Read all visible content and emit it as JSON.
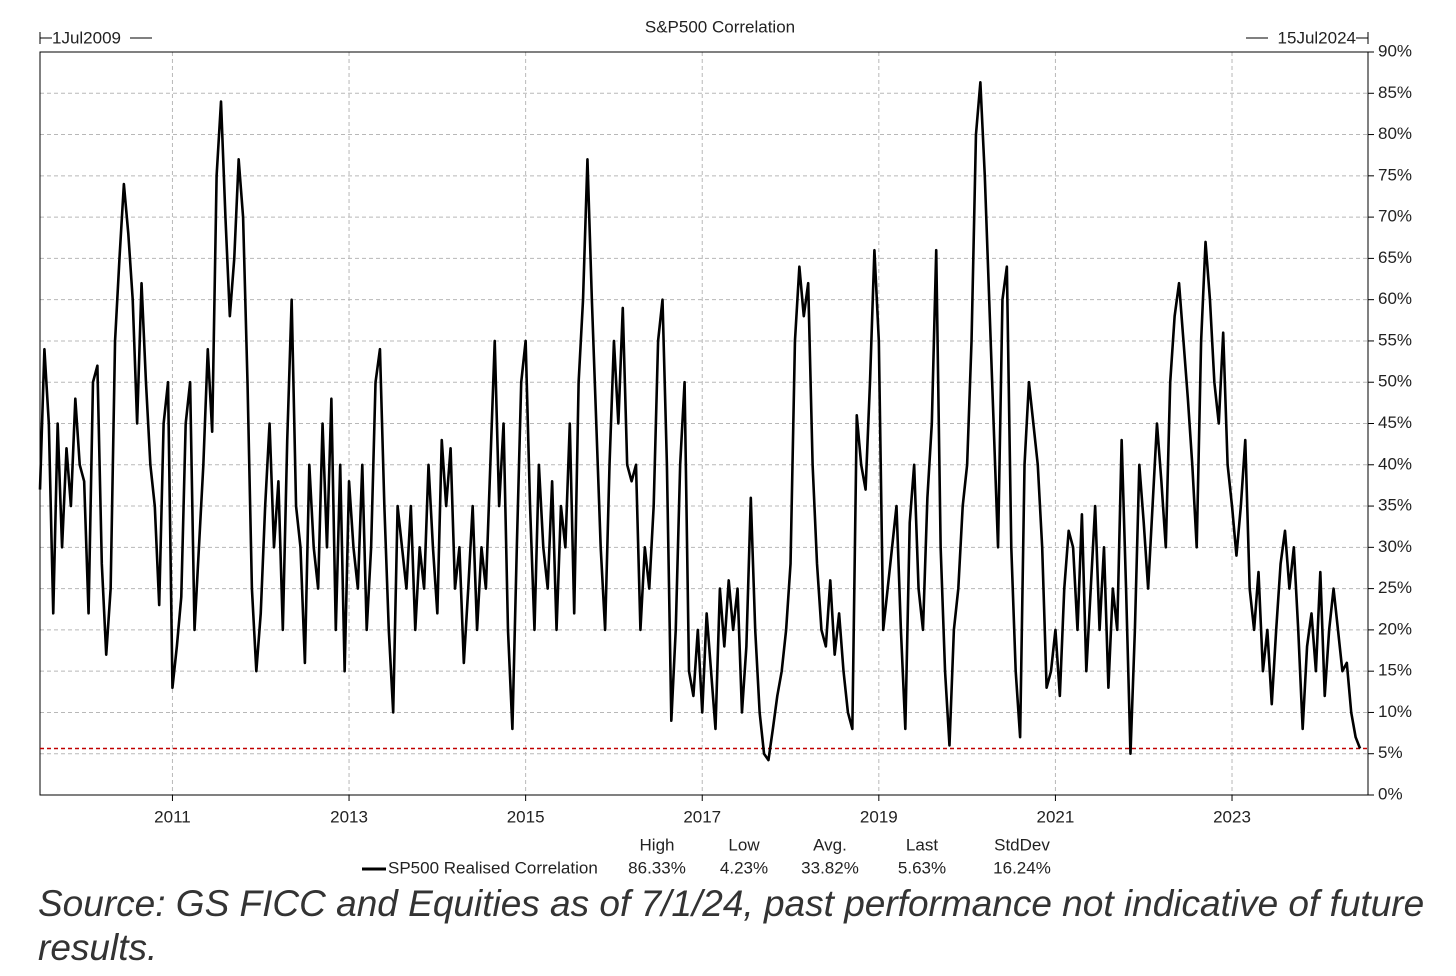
{
  "chart_data": {
    "type": "line",
    "title": "S&P500 Correlation",
    "start_label": "1Jul2009",
    "end_label": "15Jul2024",
    "x": [
      2009.5,
      2009.55,
      2009.6,
      2009.65,
      2009.7,
      2009.75,
      2009.8,
      2009.85,
      2009.9,
      2009.95,
      2010,
      2010.05,
      2010.1,
      2010.15,
      2010.2,
      2010.25,
      2010.3,
      2010.35,
      2010.4,
      2010.45,
      2010.5,
      2010.55,
      2010.6,
      2010.65,
      2010.7,
      2010.75,
      2010.8,
      2010.85,
      2010.9,
      2010.95,
      2011,
      2011.05,
      2011.1,
      2011.15,
      2011.2,
      2011.25,
      2011.3,
      2011.35,
      2011.4,
      2011.45,
      2011.5,
      2011.55,
      2011.6,
      2011.65,
      2011.7,
      2011.75,
      2011.8,
      2011.85,
      2011.9,
      2011.95,
      2012,
      2012.05,
      2012.1,
      2012.15,
      2012.2,
      2012.25,
      2012.3,
      2012.35,
      2012.4,
      2012.45,
      2012.5,
      2012.55,
      2012.6,
      2012.65,
      2012.7,
      2012.75,
      2012.8,
      2012.85,
      2012.9,
      2012.95,
      2013,
      2013.05,
      2013.1,
      2013.15,
      2013.2,
      2013.25,
      2013.3,
      2013.35,
      2013.4,
      2013.45,
      2013.5,
      2013.55,
      2013.6,
      2013.65,
      2013.7,
      2013.75,
      2013.8,
      2013.85,
      2013.9,
      2013.95,
      2014,
      2014.05,
      2014.1,
      2014.15,
      2014.2,
      2014.25,
      2014.3,
      2014.35,
      2014.4,
      2014.45,
      2014.5,
      2014.55,
      2014.6,
      2014.65,
      2014.7,
      2014.75,
      2014.8,
      2014.85,
      2014.9,
      2014.95,
      2015,
      2015.05,
      2015.1,
      2015.15,
      2015.2,
      2015.25,
      2015.3,
      2015.35,
      2015.4,
      2015.45,
      2015.5,
      2015.55,
      2015.6,
      2015.65,
      2015.7,
      2015.75,
      2015.8,
      2015.85,
      2015.9,
      2015.95,
      2016,
      2016.05,
      2016.1,
      2016.15,
      2016.2,
      2016.25,
      2016.3,
      2016.35,
      2016.4,
      2016.45,
      2016.5,
      2016.55,
      2016.6,
      2016.65,
      2016.7,
      2016.75,
      2016.8,
      2016.85,
      2016.9,
      2016.95,
      2017,
      2017.05,
      2017.1,
      2017.15,
      2017.2,
      2017.25,
      2017.3,
      2017.35,
      2017.4,
      2017.45,
      2017.5,
      2017.55,
      2017.6,
      2017.65,
      2017.7,
      2017.75,
      2017.8,
      2017.85,
      2017.9,
      2017.95,
      2018,
      2018.05,
      2018.1,
      2018.15,
      2018.2,
      2018.25,
      2018.3,
      2018.35,
      2018.4,
      2018.45,
      2018.5,
      2018.55,
      2018.6,
      2018.65,
      2018.7,
      2018.75,
      2018.8,
      2018.85,
      2018.9,
      2018.95,
      2019,
      2019.05,
      2019.1,
      2019.15,
      2019.2,
      2019.25,
      2019.3,
      2019.35,
      2019.4,
      2019.45,
      2019.5,
      2019.55,
      2019.6,
      2019.65,
      2019.7,
      2019.75,
      2019.8,
      2019.85,
      2019.9,
      2019.95,
      2020,
      2020.05,
      2020.1,
      2020.15,
      2020.2,
      2020.25,
      2020.3,
      2020.35,
      2020.4,
      2020.45,
      2020.5,
      2020.55,
      2020.6,
      2020.65,
      2020.7,
      2020.75,
      2020.8,
      2020.85,
      2020.9,
      2020.95,
      2021,
      2021.05,
      2021.1,
      2021.15,
      2021.2,
      2021.25,
      2021.3,
      2021.35,
      2021.4,
      2021.45,
      2021.5,
      2021.55,
      2021.6,
      2021.65,
      2021.7,
      2021.75,
      2021.8,
      2021.85,
      2021.9,
      2021.95,
      2022,
      2022.05,
      2022.1,
      2022.15,
      2022.2,
      2022.25,
      2022.3,
      2022.35,
      2022.4,
      2022.45,
      2022.5,
      2022.55,
      2022.6,
      2022.65,
      2022.7,
      2022.75,
      2022.8,
      2022.85,
      2022.9,
      2022.95,
      2023,
      2023.05,
      2023.1,
      2023.15,
      2023.2,
      2023.25,
      2023.3,
      2023.35,
      2023.4,
      2023.45,
      2023.5,
      2023.55,
      2023.6,
      2023.65,
      2023.7,
      2023.75,
      2023.8,
      2023.85,
      2023.9,
      2023.95,
      2024,
      2024.05,
      2024.1,
      2024.15,
      2024.2,
      2024.25,
      2024.3,
      2024.35,
      2024.4,
      2024.45
    ],
    "series": [
      {
        "name": "SP500 Realised Correlation",
        "color": "#000000",
        "values": [
          37,
          54,
          45,
          22,
          45,
          30,
          42,
          35,
          48,
          40,
          38,
          22,
          50,
          52,
          28,
          17,
          25,
          55,
          65,
          74,
          68,
          60,
          45,
          62,
          50,
          40,
          35,
          23,
          45,
          50,
          13,
          18,
          24,
          45,
          50,
          20,
          30,
          40,
          54,
          44,
          75,
          84,
          70,
          58,
          65,
          77,
          70,
          50,
          25,
          15,
          22,
          35,
          45,
          30,
          38,
          20,
          43,
          60,
          35,
          30,
          16,
          40,
          30,
          25,
          45,
          30,
          48,
          20,
          40,
          15,
          38,
          30,
          25,
          40,
          20,
          30,
          50,
          54,
          35,
          20,
          10,
          35,
          30,
          25,
          35,
          20,
          30,
          25,
          40,
          30,
          22,
          43,
          35,
          42,
          25,
          30,
          16,
          25,
          35,
          20,
          30,
          25,
          40,
          55,
          35,
          45,
          20,
          8,
          30,
          50,
          55,
          35,
          20,
          40,
          30,
          25,
          38,
          20,
          35,
          30,
          45,
          22,
          50,
          60,
          77,
          60,
          45,
          30,
          20,
          40,
          55,
          45,
          59,
          40,
          38,
          40,
          20,
          30,
          25,
          35,
          55,
          60,
          40,
          9,
          20,
          40,
          50,
          15,
          12,
          20,
          10,
          22,
          15,
          8,
          25,
          18,
          26,
          20,
          25,
          10,
          18,
          36,
          20,
          10,
          5,
          4.23,
          8,
          12,
          15,
          20,
          28,
          55,
          64,
          58,
          62,
          40,
          28,
          20,
          18,
          26,
          17,
          22,
          15,
          10,
          8,
          46,
          40,
          37,
          50,
          66,
          55,
          20,
          25,
          30,
          35,
          20,
          8,
          33,
          40,
          25,
          20,
          36,
          45,
          66,
          30,
          15,
          6,
          20,
          25,
          35,
          40,
          55,
          80,
          86.33,
          75,
          60,
          45,
          30,
          60,
          64,
          30,
          15,
          7,
          40,
          50,
          45,
          40,
          30,
          13,
          15,
          20,
          12,
          25,
          32,
          30,
          20,
          34,
          15,
          25,
          35,
          20,
          30,
          13,
          25,
          20,
          43,
          25,
          5,
          20,
          40,
          33,
          25,
          35,
          45,
          38,
          30,
          50,
          58,
          62,
          55,
          48,
          40,
          30,
          55,
          67,
          60,
          50,
          45,
          56,
          40,
          35,
          29,
          35,
          43,
          25,
          20,
          27,
          15,
          20,
          11,
          20,
          28,
          32,
          25,
          30,
          20,
          8,
          18,
          22,
          15,
          27,
          12,
          20,
          25,
          20,
          15,
          16,
          10,
          7,
          5.63
        ]
      }
    ],
    "xlim": [
      2009.5,
      2024.54
    ],
    "ylim": [
      0,
      90
    ],
    "xticks": [
      2011,
      2013,
      2015,
      2017,
      2019,
      2021,
      2023
    ],
    "yticks": [
      {
        "value": 0,
        "label": "0%"
      },
      {
        "value": 5,
        "label": "5%"
      },
      {
        "value": 10,
        "label": "10%"
      },
      {
        "value": 15,
        "label": "15%"
      },
      {
        "value": 20,
        "label": "20%"
      },
      {
        "value": 25,
        "label": "25%"
      },
      {
        "value": 30,
        "label": "30%"
      },
      {
        "value": 35,
        "label": "35%"
      },
      {
        "value": 40,
        "label": "40%"
      },
      {
        "value": 45,
        "label": "45%"
      },
      {
        "value": 50,
        "label": "50%"
      },
      {
        "value": 55,
        "label": "55%"
      },
      {
        "value": 60,
        "label": "60%"
      },
      {
        "value": 65,
        "label": "65%"
      },
      {
        "value": 70,
        "label": "70%"
      },
      {
        "value": 75,
        "label": "75%"
      },
      {
        "value": 80,
        "label": "80%"
      },
      {
        "value": 85,
        "label": "85%"
      },
      {
        "value": 90,
        "label": "90%"
      }
    ],
    "grid": true,
    "y_axis_side": "right",
    "reference_line": {
      "value": 5.63,
      "color": "#c00000"
    },
    "stats": {
      "headers": [
        "High",
        "Low",
        "Avg.",
        "Last",
        "StdDev"
      ],
      "labels": [
        "86.33%",
        "4.23%",
        "33.82%",
        "5.63%",
        "16.24%"
      ]
    }
  },
  "source": "Source: GS FICC and Equities as of 7/1/24, past performance not indicative of future results."
}
